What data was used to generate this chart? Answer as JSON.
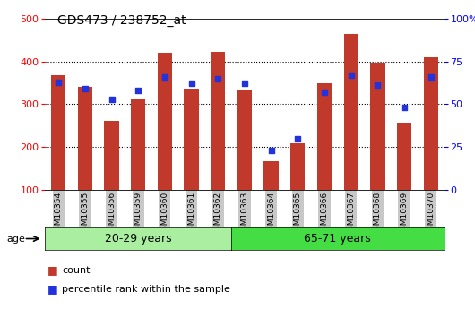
{
  "title": "GDS473 / 238752_at",
  "samples": [
    "GSM10354",
    "GSM10355",
    "GSM10356",
    "GSM10359",
    "GSM10360",
    "GSM10361",
    "GSM10362",
    "GSM10363",
    "GSM10364",
    "GSM10365",
    "GSM10366",
    "GSM10367",
    "GSM10368",
    "GSM10369",
    "GSM10370"
  ],
  "counts": [
    367,
    340,
    262,
    312,
    420,
    336,
    422,
    335,
    168,
    210,
    350,
    464,
    398,
    257,
    410
  ],
  "percentile_ranks": [
    63,
    59,
    53,
    58,
    66,
    62,
    65,
    62,
    23,
    30,
    57,
    67,
    61,
    48,
    66
  ],
  "group1_label": "20-29 years",
  "group2_label": "65-71 years",
  "group1_count": 7,
  "group2_count": 8,
  "baseline": 100,
  "ylim_left": [
    100,
    500
  ],
  "ylim_right": [
    0,
    100
  ],
  "yticks_left": [
    100,
    200,
    300,
    400,
    500
  ],
  "yticks_right": [
    0,
    25,
    50,
    75,
    100
  ],
  "bar_color": "#C0392B",
  "dot_color": "#2233DD",
  "group1_bg": "#AAEEA0",
  "group2_bg": "#44DD44",
  "label_bg": "#C8C8C8",
  "legend_count_label": "count",
  "legend_pct_label": "percentile rank within the sample"
}
